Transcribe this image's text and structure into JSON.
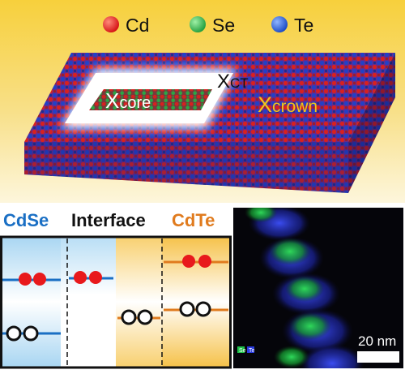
{
  "legend": {
    "items": [
      {
        "label": "Cd",
        "color": "#e8191c"
      },
      {
        "label": "Se",
        "color": "#27b34a"
      },
      {
        "label": "Te",
        "color": "#1f5bd8"
      }
    ]
  },
  "nanoplatelet": {
    "core_label_main": "X",
    "core_label_sub": "core",
    "ct_label_main": "X",
    "ct_label_sub": "CT",
    "crown_label_main": "X",
    "crown_label_sub": "crown"
  },
  "band_diagram": {
    "cdse_label": "CdSe",
    "interface_label": "Interface",
    "cdte_label": "CdTe",
    "colors": {
      "cdse": "#1a6fc4",
      "interface": "#111111",
      "cdte": "#e07b1e"
    }
  },
  "eds_map": {
    "legend_se": "Se",
    "legend_te": "Te",
    "scale_label": "20 nm"
  }
}
